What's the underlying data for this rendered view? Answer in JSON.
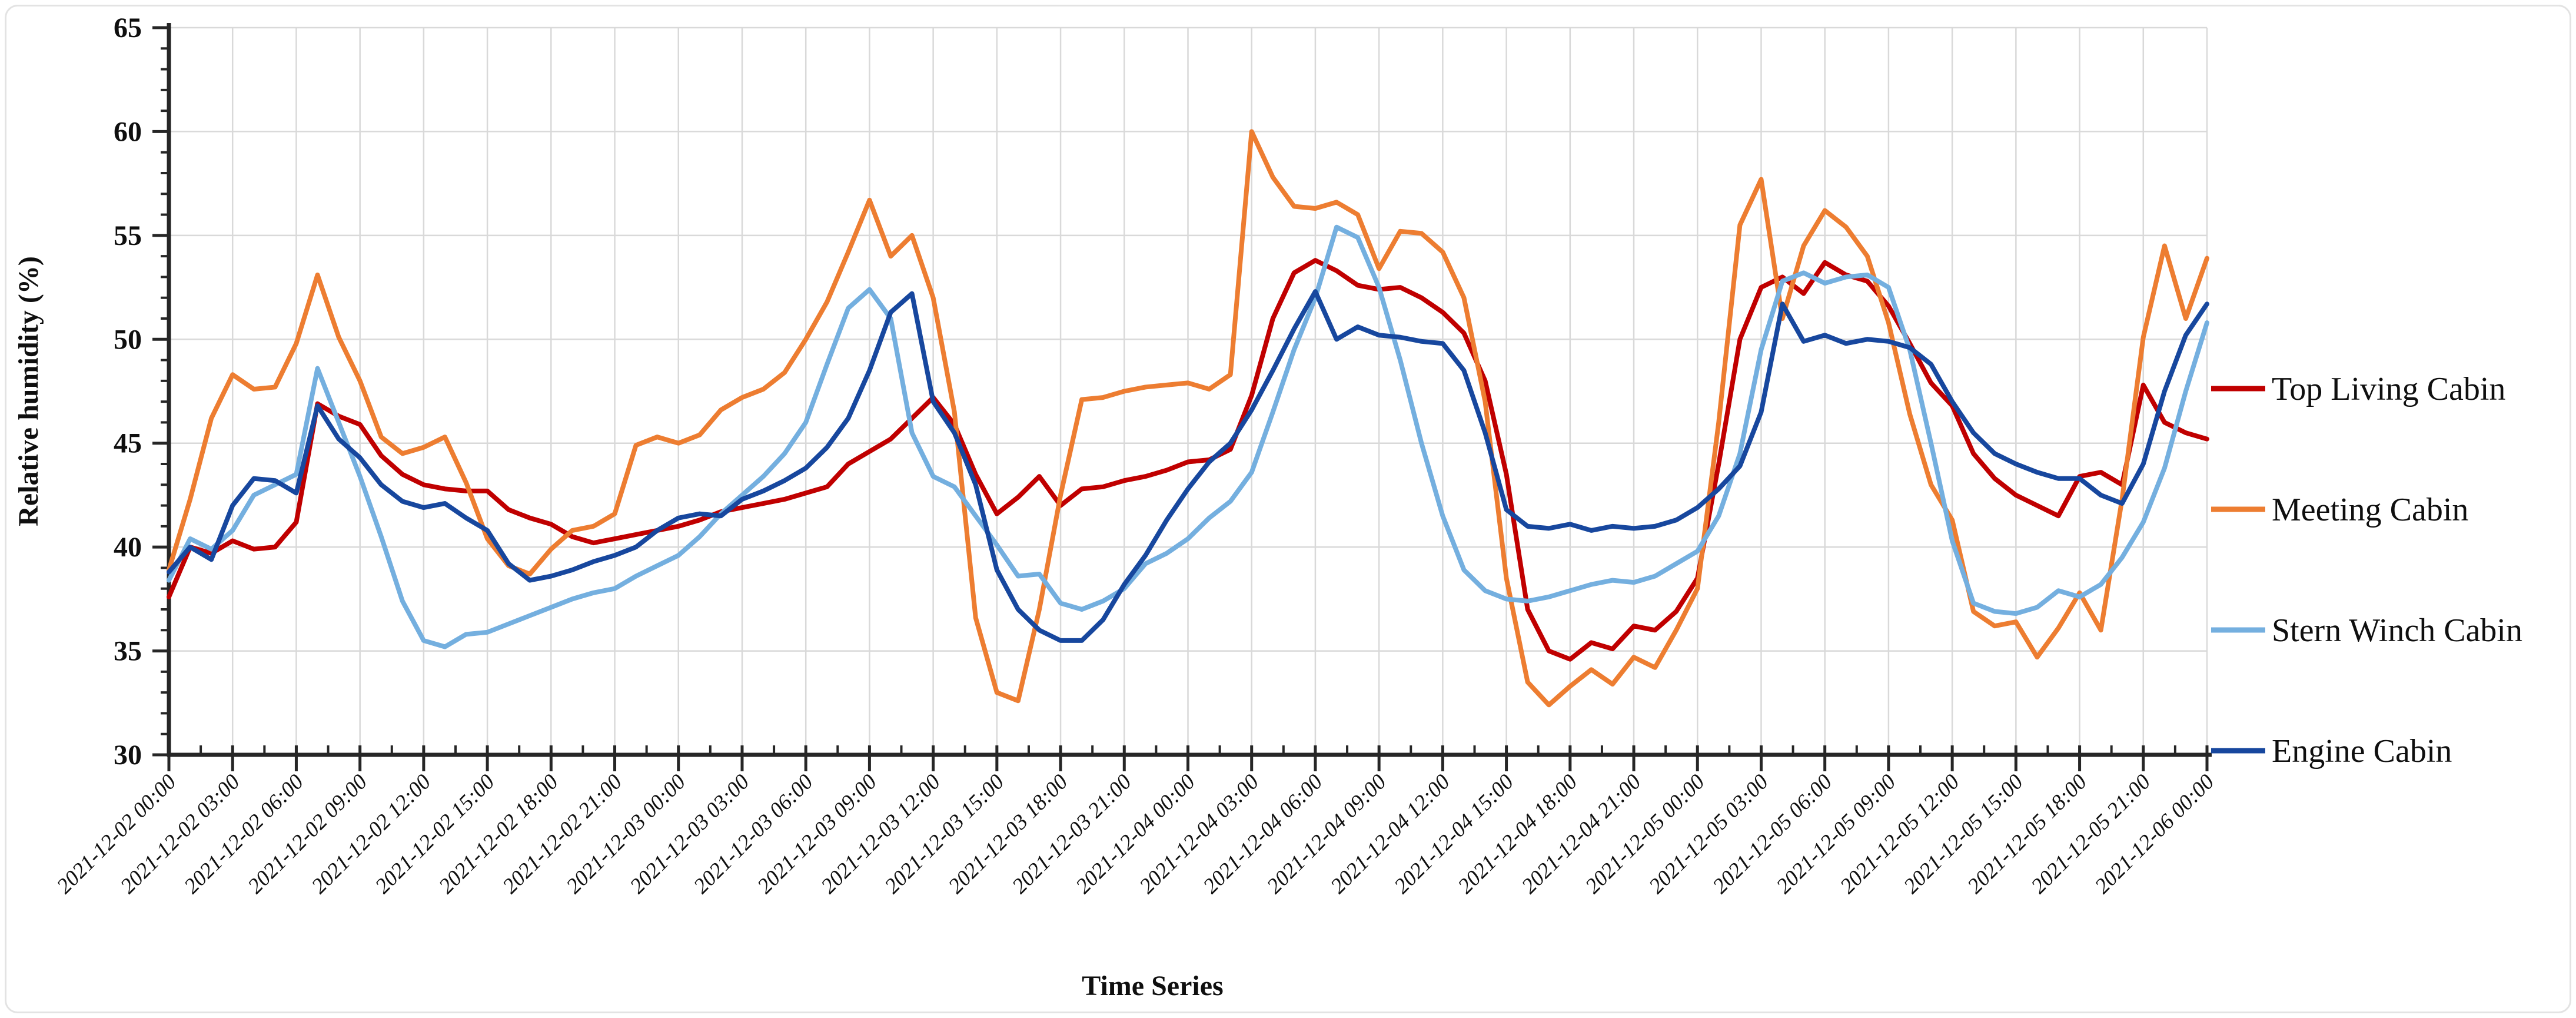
{
  "figure": {
    "background": "#ffffff",
    "border_color": "#e3e3e3",
    "axis_color": "#262626",
    "grid_color": "#d9d9d9",
    "text_color": "#0f0f0f"
  },
  "chart_data": {
    "type": "line",
    "title": "",
    "xlabel": "Time Series",
    "ylabel": "Relative humidity  (%)",
    "ylim": [
      30,
      65
    ],
    "ytick_step": 5,
    "y_minor_step": 1,
    "ytick_labels": [
      "30",
      "35",
      "40",
      "45",
      "50",
      "55",
      "60",
      "65"
    ],
    "x_hours_start": 0,
    "x_hours_end": 96,
    "x_tick_interval_hours": 3,
    "grid": true,
    "legend_position": "right",
    "xtick_labels": [
      "2021-12-02 00:00",
      "2021-12-02 03:00",
      "2021-12-02 06:00",
      "2021-12-02 09:00",
      "2021-12-02 12:00",
      "2021-12-02 15:00",
      "2021-12-02 18:00",
      "2021-12-02 21:00",
      "2021-12-03 00:00",
      "2021-12-03 03:00",
      "2021-12-03 06:00",
      "2021-12-03 09:00",
      "2021-12-03 12:00",
      "2021-12-03 15:00",
      "2021-12-03 18:00",
      "2021-12-03 21:00",
      "2021-12-04 00:00",
      "2021-12-04 03:00",
      "2021-12-04 06:00",
      "2021-12-04 09:00",
      "2021-12-04 12:00",
      "2021-12-04 15:00",
      "2021-12-04 18:00",
      "2021-12-04 21:00",
      "2021-12-05 00:00",
      "2021-12-05 03:00",
      "2021-12-05 06:00",
      "2021-12-05 09:00",
      "2021-12-05 12:00",
      "2021-12-05 15:00",
      "2021-12-05 18:00",
      "2021-12-05 21:00",
      "2021-12-06 00:00"
    ],
    "series": [
      {
        "name": "Top Living Cabin",
        "color": "#C00000",
        "values": [
          37.6,
          40.0,
          39.7,
          40.3,
          39.9,
          40.0,
          41.2,
          46.9,
          46.3,
          45.9,
          44.4,
          43.5,
          43.0,
          42.8,
          42.7,
          42.7,
          41.8,
          41.4,
          41.1,
          40.5,
          40.2,
          40.4,
          40.6,
          40.8,
          41.0,
          41.3,
          41.7,
          41.9,
          42.1,
          42.3,
          42.6,
          42.9,
          44.0,
          44.6,
          45.2,
          46.2,
          47.2,
          45.9,
          43.5,
          41.6,
          42.4,
          43.4,
          42.0,
          42.8,
          42.9,
          43.2,
          43.4,
          43.7,
          44.1,
          44.2,
          44.7,
          47.3,
          51.0,
          53.2,
          53.8,
          53.3,
          52.6,
          52.4,
          52.5,
          52.0,
          51.3,
          50.3,
          48.0,
          43.5,
          37.0,
          35.0,
          34.6,
          35.4,
          35.1,
          36.2,
          36.0,
          36.9,
          38.5,
          44.0,
          50.0,
          52.5,
          53.0,
          52.2,
          53.7,
          53.1,
          52.8,
          51.6,
          49.8,
          47.9,
          46.8,
          44.5,
          43.3,
          42.5,
          42.0,
          41.5,
          43.4,
          43.6,
          43.0,
          47.8,
          46.0,
          45.5,
          45.2
        ]
      },
      {
        "name": "Meeting Cabin",
        "color": "#ED7D31",
        "values": [
          38.9,
          42.3,
          46.2,
          48.3,
          47.6,
          47.7,
          49.8,
          53.1,
          50.1,
          48.0,
          45.3,
          44.5,
          44.8,
          45.3,
          43.1,
          40.4,
          39.1,
          38.7,
          39.9,
          40.8,
          41.0,
          41.6,
          44.9,
          45.3,
          45.0,
          45.4,
          46.6,
          47.2,
          47.6,
          48.4,
          50.0,
          51.8,
          54.2,
          56.7,
          54.0,
          55.0,
          52.0,
          46.5,
          36.6,
          33.0,
          32.6,
          37.0,
          42.5,
          47.1,
          47.2,
          47.5,
          47.7,
          47.8,
          47.9,
          47.6,
          48.3,
          60.0,
          57.8,
          56.4,
          56.3,
          56.6,
          56.0,
          53.4,
          55.2,
          55.1,
          54.2,
          52.0,
          47.0,
          38.5,
          33.5,
          32.4,
          33.3,
          34.1,
          33.4,
          34.7,
          34.2,
          36.0,
          38.0,
          46.0,
          55.5,
          57.7,
          51.0,
          54.5,
          56.2,
          55.4,
          54.0,
          50.8,
          46.4,
          43.0,
          41.3,
          36.9,
          36.2,
          36.4,
          34.7,
          36.1,
          37.8,
          36.0,
          42.3,
          50.1,
          54.5,
          51.0,
          53.9
        ]
      },
      {
        "name": "Stern Winch Cabin",
        "color": "#74AFDF",
        "values": [
          38.4,
          40.4,
          39.9,
          40.8,
          42.5,
          43.0,
          43.5,
          48.6,
          46.0,
          43.4,
          40.5,
          37.4,
          35.5,
          35.2,
          35.8,
          35.9,
          36.3,
          36.7,
          37.1,
          37.5,
          37.8,
          38.0,
          38.6,
          39.1,
          39.6,
          40.5,
          41.6,
          42.5,
          43.4,
          44.5,
          46.0,
          48.8,
          51.5,
          52.4,
          51.0,
          45.5,
          43.4,
          42.9,
          41.5,
          40.1,
          38.6,
          38.7,
          37.3,
          37.0,
          37.4,
          38.0,
          39.2,
          39.7,
          40.4,
          41.4,
          42.2,
          43.6,
          46.5,
          49.5,
          52.0,
          55.4,
          54.9,
          52.5,
          49.0,
          45.0,
          41.5,
          38.9,
          37.9,
          37.5,
          37.4,
          37.6,
          37.9,
          38.2,
          38.4,
          38.3,
          38.6,
          39.2,
          39.8,
          41.5,
          44.5,
          49.5,
          52.8,
          53.2,
          52.7,
          53.0,
          53.1,
          52.5,
          49.5,
          45.0,
          40.3,
          37.3,
          36.9,
          36.8,
          37.1,
          37.9,
          37.6,
          38.2,
          39.5,
          41.2,
          43.8,
          47.5,
          50.8
        ]
      },
      {
        "name": "Engine Cabin",
        "color": "#17479E",
        "values": [
          38.8,
          40.0,
          39.4,
          42.0,
          43.3,
          43.2,
          42.6,
          46.8,
          45.2,
          44.3,
          43.0,
          42.2,
          41.9,
          42.1,
          41.4,
          40.8,
          39.2,
          38.4,
          38.6,
          38.9,
          39.3,
          39.6,
          40.0,
          40.8,
          41.4,
          41.6,
          41.5,
          42.3,
          42.7,
          43.2,
          43.8,
          44.8,
          46.2,
          48.5,
          51.3,
          52.2,
          47.0,
          45.5,
          43.0,
          38.9,
          37.0,
          36.0,
          35.5,
          35.5,
          36.5,
          38.2,
          39.6,
          41.3,
          42.8,
          44.1,
          45.0,
          46.6,
          48.5,
          50.5,
          52.3,
          50.0,
          50.6,
          50.2,
          50.1,
          49.9,
          49.8,
          48.5,
          45.5,
          41.8,
          41.0,
          40.9,
          41.1,
          40.8,
          41.0,
          40.9,
          41.0,
          41.3,
          41.9,
          42.8,
          43.9,
          46.5,
          51.7,
          49.9,
          50.2,
          49.8,
          50.0,
          49.9,
          49.6,
          48.8,
          47.0,
          45.5,
          44.5,
          44.0,
          43.6,
          43.3,
          43.3,
          42.5,
          42.1,
          44.0,
          47.5,
          50.2,
          51.7
        ]
      }
    ]
  }
}
